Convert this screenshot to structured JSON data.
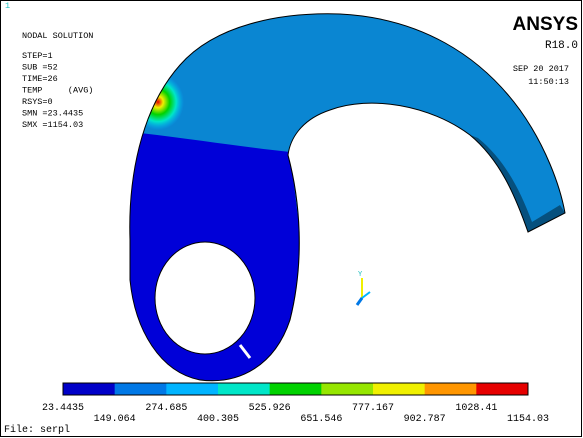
{
  "viewport_number": "1",
  "header": {
    "title": "NODAL SOLUTION",
    "info": [
      "STEP=1",
      "SUB =52",
      "TIME=26",
      "TEMP     (AVG)",
      "RSYS=0",
      "SMN =23.4435",
      "SMX =1154.03"
    ]
  },
  "brand": {
    "logo": "ANSYS",
    "version": "R18.0",
    "date": "SEP 20 2017",
    "time": "11:50:13"
  },
  "triad_label": "Y",
  "legend": {
    "colors": [
      "#0000c8",
      "#0078e6",
      "#00b4ff",
      "#00e6c8",
      "#00d200",
      "#96e600",
      "#f0f000",
      "#ff9600",
      "#e60000"
    ],
    "labels": [
      "23.4435",
      "149.064",
      "274.685",
      "400.305",
      "525.926",
      "651.546",
      "777.167",
      "902.787",
      "1028.41",
      "1154.03"
    ]
  },
  "footer": "File: serpl"
}
